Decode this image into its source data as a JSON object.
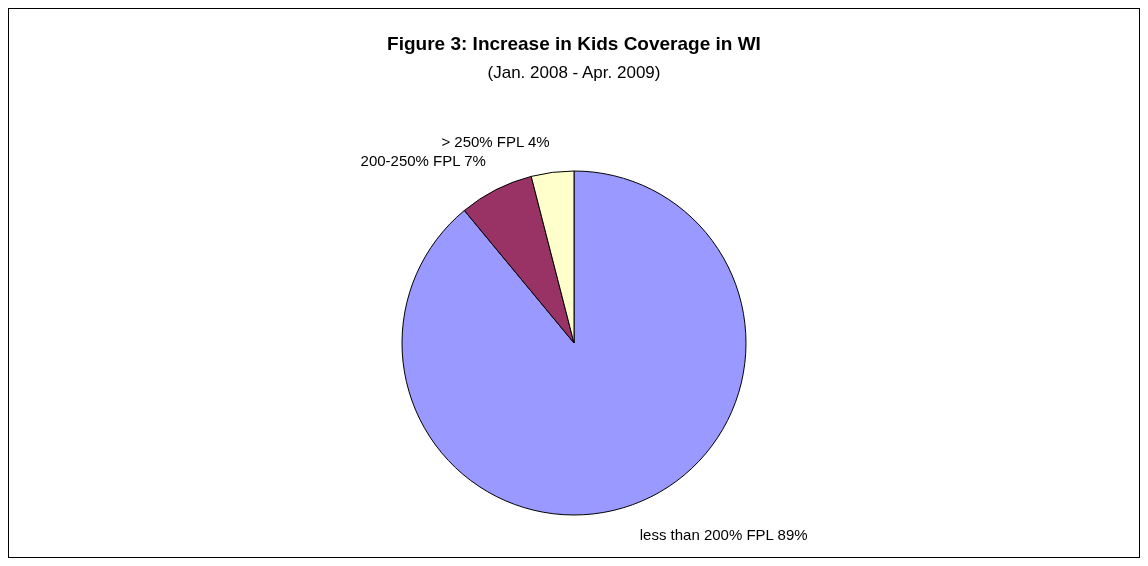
{
  "chart_data": {
    "type": "pie",
    "title": "Figure 3:  Increase in Kids Coverage in WI",
    "subtitle": "(Jan. 2008 - Apr. 2009)",
    "categories": [
      "less than 200% FPL",
      "200-250% FPL",
      ">  250% FPL"
    ],
    "values": [
      89,
      7,
      4
    ],
    "value_labels": [
      "89%",
      "7%",
      "4%"
    ],
    "colors": [
      "#9999ff",
      "#993366",
      "#ffffcc"
    ],
    "legend": false
  }
}
